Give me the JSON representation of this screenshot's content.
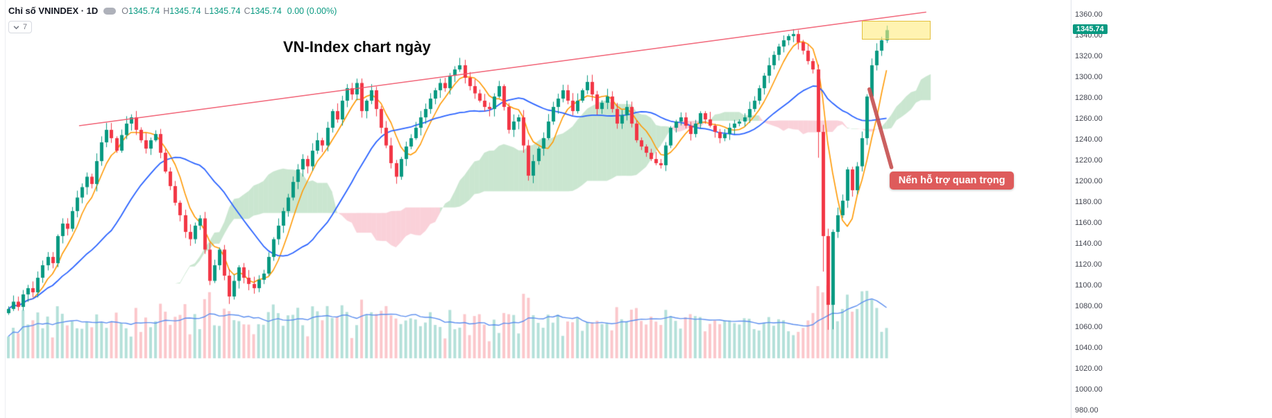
{
  "legend": {
    "symbol_title": "Chỉ số VNINDEX · 1D",
    "ohlc": {
      "o_label": "O",
      "o_value": "1345.74",
      "h_label": "H",
      "h_value": "1345.74",
      "l_label": "L",
      "l_value": "1345.74",
      "c_label": "C",
      "c_value": "1345.74",
      "change_value": "0.00 (0.00%)"
    },
    "indicator_count": "7"
  },
  "annotations": {
    "title_text": "VN-Index chart ngày",
    "support_callout": "Nến hỗ trợ quan trọng"
  },
  "price_axis": {
    "labels": [
      "1360.00",
      "1340.00",
      "1320.00",
      "1300.00",
      "1280.00",
      "1260.00",
      "1240.00",
      "1220.00",
      "1200.00",
      "1180.00",
      "1160.00",
      "1140.00",
      "1120.00",
      "1100.00",
      "1080.00",
      "1060.00",
      "1040.00",
      "1020.00",
      "1000.00",
      "980.00"
    ],
    "last_price": "1345.74"
  },
  "colors": {
    "up": "#089981",
    "down": "#F23645",
    "vol_up": "rgba(8,153,129,0.30)",
    "vol_down": "rgba(242,54,69,0.28)",
    "cloud_green": "rgba(103,183,119,0.35)",
    "cloud_pink": "rgba(242,139,160,0.40)",
    "ma_fast": "#FF9800",
    "ma_slow": "#2962FF",
    "vol_ma": "#5A8DEE",
    "trendline": "#F0566B",
    "highlight_fill": "rgba(255,235,125,0.60)",
    "highlight_border": "#E3BF3C",
    "callout_bg": "#DE5B5B",
    "callout_text": "#FFFFFF",
    "arrow": "#C64F4F",
    "badge_bg": "#089981",
    "badge_text": "#FFFFFF",
    "axis_text": "#434651",
    "change_green": "#089981"
  },
  "chart_data": {
    "type": "candlestick",
    "title": "Chỉ số VNINDEX 1D (VN-Index daily chart)",
    "x_axis": "time (daily bars, ~180 sessions)",
    "y_axis_range": [
      975,
      1365
    ],
    "y_tick_step": 20,
    "last_bar": {
      "open": 1345.74,
      "high": 1345.74,
      "low": 1345.74,
      "close": 1345.74,
      "change": "0.00 (0.00%)"
    },
    "indicators": [
      "Ichimoku Cloud",
      "MA fast (orange)",
      "MA slow (blue)",
      "Volume",
      "Volume MA (blue)"
    ],
    "closes": [
      1078,
      1085,
      1080,
      1092,
      1098,
      1094,
      1108,
      1120,
      1128,
      1122,
      1148,
      1160,
      1155,
      1172,
      1185,
      1195,
      1205,
      1198,
      1220,
      1238,
      1250,
      1242,
      1230,
      1245,
      1256,
      1262,
      1250,
      1240,
      1232,
      1240,
      1246,
      1228,
      1210,
      1196,
      1180,
      1168,
      1152,
      1145,
      1158,
      1165,
      1135,
      1105,
      1120,
      1135,
      1110,
      1090,
      1105,
      1118,
      1108,
      1102,
      1098,
      1106,
      1112,
      1128,
      1145,
      1158,
      1172,
      1185,
      1200,
      1212,
      1222,
      1215,
      1230,
      1240,
      1235,
      1252,
      1268,
      1260,
      1278,
      1290,
      1284,
      1295,
      1268,
      1278,
      1288,
      1270,
      1252,
      1235,
      1218,
      1205,
      1222,
      1234,
      1242,
      1252,
      1262,
      1270,
      1280,
      1288,
      1295,
      1290,
      1302,
      1308,
      1312,
      1300,
      1292,
      1285,
      1278,
      1272,
      1270,
      1282,
      1292,
      1272,
      1250,
      1258,
      1262,
      1235,
      1206,
      1220,
      1232,
      1242,
      1258,
      1272,
      1280,
      1288,
      1278,
      1268,
      1278,
      1288,
      1296,
      1284,
      1270,
      1276,
      1282,
      1270,
      1256,
      1264,
      1272,
      1256,
      1240,
      1234,
      1228,
      1222,
      1218,
      1216,
      1235,
      1252,
      1258,
      1262,
      1254,
      1246,
      1256,
      1266,
      1260,
      1254,
      1248,
      1242,
      1246,
      1252,
      1256,
      1258,
      1262,
      1270,
      1278,
      1290,
      1302,
      1312,
      1322,
      1330,
      1336,
      1340,
      1342,
      1334,
      1326,
      1316,
      1308,
      1248,
      1148,
      1082,
      1152,
      1168,
      1182,
      1212,
      1192,
      1215,
      1242,
      1282,
      1312,
      1326,
      1336,
      1345.74
    ],
    "drawings": {
      "trendline": {
        "start_index": 14.5,
        "start_price": 1254,
        "end_index": 187,
        "end_price": 1363
      },
      "highlight_box": {
        "start_index": 174,
        "end_index": 188,
        "top_price": 1355,
        "bottom_price": 1337
      },
      "arrow": {
        "start_index": 175.5,
        "start_price": 1289,
        "end_index": 180,
        "end_price": 1214
      },
      "callout": {
        "index": 179.6,
        "price": 1210
      }
    }
  }
}
